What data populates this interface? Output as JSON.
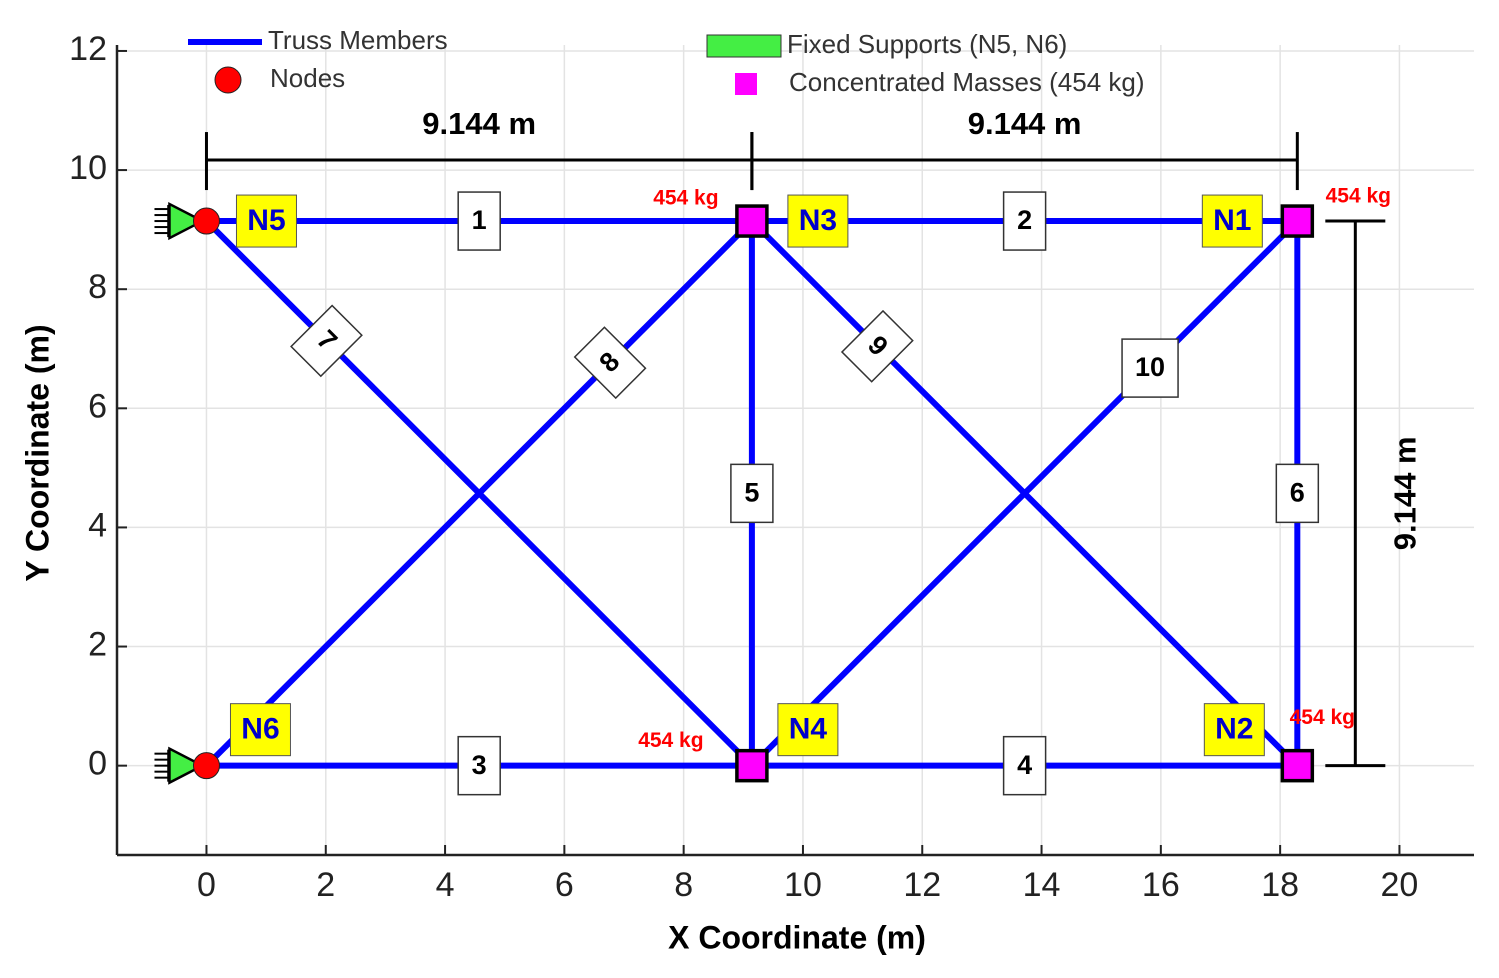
{
  "chart_data": {
    "type": "truss",
    "xlabel": "X Coordinate (m)",
    "ylabel": "Y Coordinate (m)",
    "xlim": [
      -1.5,
      21.25
    ],
    "ylim": [
      -1.5,
      12.1
    ],
    "xticks": [
      0,
      2,
      4,
      6,
      8,
      10,
      12,
      14,
      16,
      18,
      20
    ],
    "yticks": [
      0,
      2,
      4,
      6,
      8,
      10,
      12
    ],
    "grid": true,
    "member_color": "#0000ff",
    "node_color": "#ff0000",
    "support_color": "#44ee44",
    "mass_color": "#ff00ff",
    "label_box_color": "#ffff00",
    "mass_label_color": "#ff0000",
    "legend": [
      {
        "label": "Truss Members",
        "kind": "line",
        "color": "#0000ff"
      },
      {
        "label": "Nodes",
        "kind": "circle",
        "color": "#ff0000"
      },
      {
        "label": "Fixed Supports (N5, N6)",
        "kind": "rect",
        "color": "#44ee44"
      },
      {
        "label": "Concentrated Masses (454 kg)",
        "kind": "square",
        "color": "#ff00ff"
      }
    ],
    "nodes": [
      {
        "name": "N1",
        "x": 18.288,
        "y": 9.144,
        "mass_label": "454 kg"
      },
      {
        "name": "N2",
        "x": 18.288,
        "y": 0,
        "mass_label": "454 kg"
      },
      {
        "name": "N3",
        "x": 9.144,
        "y": 9.144,
        "mass_label": "454 kg"
      },
      {
        "name": "N4",
        "x": 9.144,
        "y": 0,
        "mass_label": "454 kg"
      },
      {
        "name": "N5",
        "x": 0,
        "y": 9.144,
        "support": true
      },
      {
        "name": "N6",
        "x": 0,
        "y": 0,
        "support": true
      }
    ],
    "members": [
      {
        "label": "1",
        "from": 4,
        "to": 2
      },
      {
        "label": "2",
        "from": 2,
        "to": 0
      },
      {
        "label": "3",
        "from": 5,
        "to": 3
      },
      {
        "label": "4",
        "from": 3,
        "to": 1
      },
      {
        "label": "5",
        "from": 2,
        "to": 3
      },
      {
        "label": "6",
        "from": 0,
        "to": 1
      },
      {
        "label": "7",
        "from": 4,
        "to": 3
      },
      {
        "label": "8",
        "from": 5,
        "to": 2
      },
      {
        "label": "9",
        "from": 2,
        "to": 1
      },
      {
        "label": "10",
        "from": 3,
        "to": 0
      }
    ],
    "dimensions": [
      {
        "label": "9.144 m",
        "from": 4,
        "to": 2
      },
      {
        "label": "9.144 m",
        "from": 2,
        "to": 0
      },
      {
        "label": "9.144 m",
        "from": 0,
        "to": 1
      }
    ]
  }
}
